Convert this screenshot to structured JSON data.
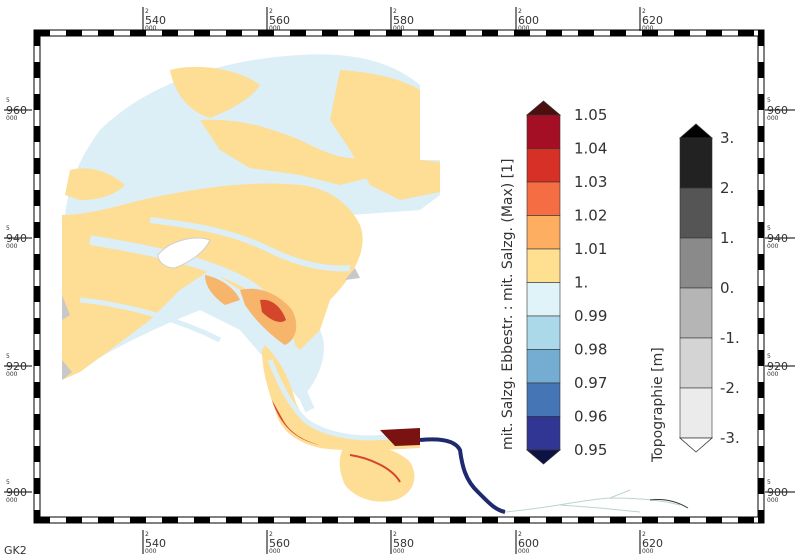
{
  "projection_label": "GK2",
  "coords": {
    "x_prefix": "2",
    "x_suffix": "000",
    "x_ticks": [
      "540",
      "560",
      "580",
      "600",
      "620"
    ],
    "y_prefix": "5",
    "y_suffix": "000",
    "y_ticks": [
      "960",
      "940",
      "920",
      "900"
    ]
  },
  "salinity_colorbar": {
    "title": "mit. Salzg. Ebbestr. : mit. Salzg. (Max) [1]",
    "labels": [
      "1.05",
      "1.04",
      "1.03",
      "1.02",
      "1.01",
      "1.",
      "0.99",
      "0.98",
      "0.97",
      "0.96",
      "0.95"
    ],
    "colors": [
      "#a50f26",
      "#d73027",
      "#f46d43",
      "#fdae61",
      "#fee090",
      "#e0f3f8",
      "#abd9e9",
      "#74add1",
      "#4575b4",
      "#313695"
    ],
    "over_color": "#4d0e0e",
    "under_color": "#0d1145"
  },
  "topo_colorbar": {
    "title": "Topographie [m]",
    "labels": [
      "3.",
      "2.",
      "1.",
      "0.",
      "-1.",
      "-2.",
      "-3."
    ],
    "colors": [
      "#222222",
      "#555555",
      "#8a8a8a",
      "#b5b5b5",
      "#d4d4d4",
      "#ebebeb"
    ],
    "over_color": "#000000",
    "under_color": "#ffffff"
  },
  "colors": {
    "water_light": "#dceef6",
    "sand": "#fedd95",
    "orange": "#f7b46b",
    "red": "#d4462c",
    "dark_red": "#7a1212",
    "navy": "#1f2a6e",
    "grey": "#c8c8c8"
  }
}
